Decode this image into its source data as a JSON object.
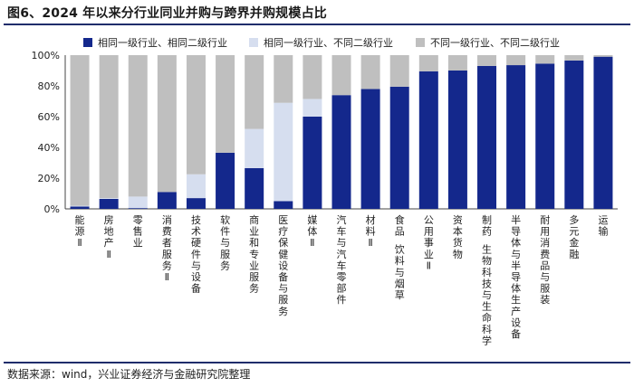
{
  "title": "图6、2024 年以来分行业同业并购与跨界并购规模占比",
  "source": "数据来源：wind，兴业证券经济与金融研究院整理",
  "colors": {
    "same_both": "#14288c",
    "same_l1_diff_l2": "#d6deef",
    "diff_both": "#bfbfbf"
  },
  "chart_data": {
    "type": "bar",
    "stacked": true,
    "y_axis_ticks": [
      "0%",
      "20%",
      "40%",
      "60%",
      "80%",
      "100%"
    ],
    "ylim": [
      0,
      100
    ],
    "legend_position": "top",
    "categories": [
      "能源Ⅱ",
      "房地产Ⅱ",
      "零售业",
      "消费者服务Ⅱ",
      "技术硬件与设备",
      "软件与服务",
      "商业和专业服务",
      "医疗保健设备与服务",
      "媒体Ⅱ",
      "汽车与汽车零部件",
      "材料Ⅱ",
      "食品、饮料与烟草",
      "公用事业Ⅱ",
      "资本货物",
      "制药、生物科技与生命科学",
      "半导体与半导体生产设备",
      "耐用消费品与服装",
      "多元金融",
      "运输"
    ],
    "series": [
      {
        "name": "相同一级行业、相同二级行业",
        "values": [
          1.5,
          6.5,
          0.5,
          11,
          7,
          36.5,
          26.5,
          5,
          60,
          74,
          78,
          79.5,
          89.5,
          90,
          93,
          93.5,
          94.5,
          96.5,
          99
        ]
      },
      {
        "name": "相同一级行业、不同二级行业",
        "values": [
          0.5,
          0.5,
          7.5,
          0,
          15.5,
          0,
          25.5,
          64,
          11.5,
          0,
          0,
          0,
          0,
          0,
          0,
          0,
          0,
          0,
          0
        ]
      },
      {
        "name": "不同一级行业、不同二级行业",
        "values": [
          98,
          93,
          92,
          89,
          77.5,
          63.5,
          48,
          31,
          28.5,
          26,
          22,
          20.5,
          10.5,
          10,
          7,
          6.5,
          5.5,
          3.5,
          1
        ]
      }
    ]
  }
}
